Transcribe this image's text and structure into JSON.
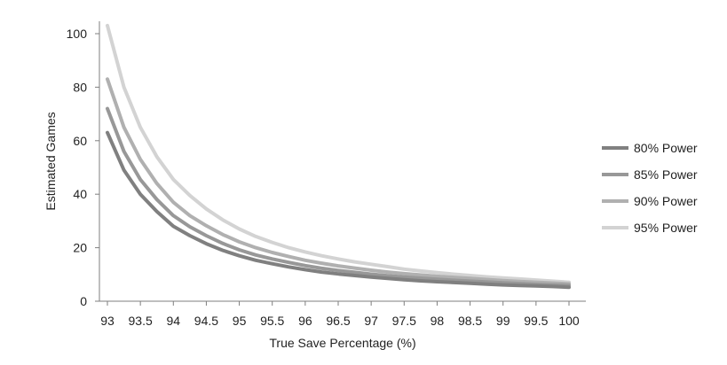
{
  "chart_data": {
    "type": "line",
    "title": "",
    "xlabel": "True Save Percentage (%)",
    "ylabel": "Estimated Games",
    "xlim": [
      93,
      100
    ],
    "ylim": [
      0,
      100
    ],
    "x_ticks": [
      "93",
      "93.5",
      "94",
      "94.5",
      "95",
      "95.5",
      "96",
      "96.5",
      "97",
      "97.5",
      "98",
      "98.5",
      "99",
      "99.5",
      "100"
    ],
    "y_ticks": [
      "0",
      "20",
      "40",
      "60",
      "80",
      "100"
    ],
    "grid": false,
    "legend_position": "right",
    "x": [
      93.0,
      93.25,
      93.5,
      93.75,
      94.0,
      94.25,
      94.5,
      94.75,
      95.0,
      95.25,
      95.5,
      95.75,
      96.0,
      96.25,
      96.5,
      96.75,
      97.0,
      97.25,
      97.5,
      97.75,
      98.0,
      98.25,
      98.5,
      98.75,
      99.0,
      99.25,
      99.5,
      99.75,
      100.0
    ],
    "series": [
      {
        "name": "80% Power",
        "color": "#808080",
        "values": [
          63,
          49,
          40,
          33.5,
          28,
          24.5,
          21.5,
          19,
          17,
          15.3,
          14,
          12.8,
          11.8,
          10.9,
          10.2,
          9.6,
          9,
          8.5,
          8,
          7.6,
          7.3,
          7,
          6.7,
          6.4,
          6.1,
          5.9,
          5.7,
          5.5,
          5.2
        ]
      },
      {
        "name": "85% Power",
        "color": "#989898",
        "values": [
          72,
          56,
          45.5,
          38,
          32,
          27.8,
          24.5,
          21.6,
          19.2,
          17.3,
          15.8,
          14.5,
          13.3,
          12.3,
          11.5,
          10.8,
          10.1,
          9.5,
          9,
          8.6,
          8.2,
          7.8,
          7.5,
          7.2,
          6.9,
          6.6,
          6.3,
          6.1,
          5.9
        ]
      },
      {
        "name": "90% Power",
        "color": "#b0b0b0",
        "values": [
          83,
          65,
          53,
          44,
          37,
          32,
          28.2,
          24.9,
          22.2,
          20,
          18.2,
          16.7,
          15.3,
          14.2,
          13.2,
          12.4,
          11.6,
          10.9,
          10.3,
          9.8,
          9.3,
          8.9,
          8.5,
          8.1,
          7.7,
          7.4,
          7.1,
          6.8,
          6.5
        ]
      },
      {
        "name": "95% Power",
        "color": "#d3d3d3",
        "values": [
          103,
          80,
          65,
          54,
          45.5,
          39.5,
          34.5,
          30.4,
          27,
          24.2,
          22,
          20,
          18.4,
          17,
          15.8,
          14.7,
          13.8,
          12.9,
          12,
          11.3,
          10.7,
          10.1,
          9.6,
          9.1,
          8.7,
          8.3,
          7.9,
          7.5,
          7.1
        ]
      }
    ]
  }
}
